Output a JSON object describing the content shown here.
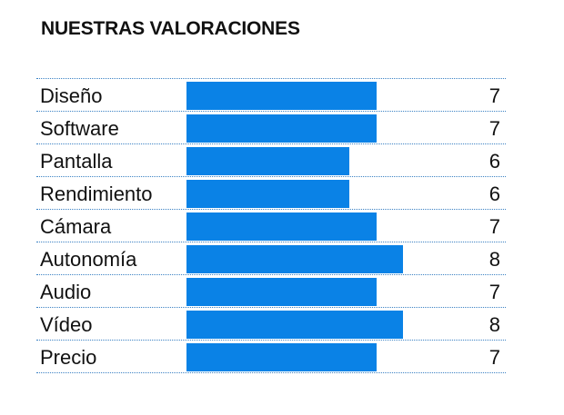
{
  "title": "NUESTRAS VALORACIONES",
  "colors": {
    "bar": "#0a82e6",
    "divider": "#3c82c4"
  },
  "chart_data": {
    "type": "bar",
    "orientation": "horizontal",
    "title": "NUESTRAS VALORACIONES",
    "categories": [
      "Diseño",
      "Software",
      "Pantalla",
      "Rendimiento",
      "Cámara",
      "Autonomía",
      "Audio",
      "Vídeo",
      "Precio"
    ],
    "values": [
      7,
      7,
      6,
      6,
      7,
      8,
      7,
      8,
      7
    ],
    "xlim": [
      0,
      10
    ],
    "grid": false,
    "data_labels": true
  }
}
